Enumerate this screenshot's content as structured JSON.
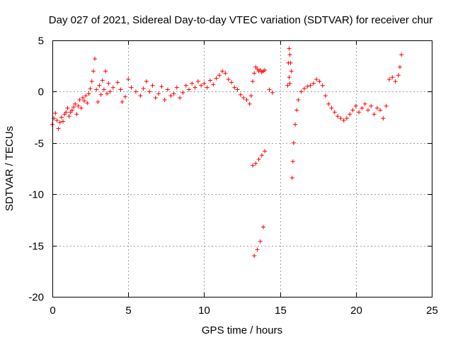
{
  "chart_data": {
    "type": "scatter",
    "title": "Day 027 of 2021, Sidereal Day-to-day VTEC variation (SDTVAR) for receiver chur",
    "xlabel": "GPS time / hours",
    "ylabel": "SDTVAR / TECUs",
    "xlim": [
      0,
      25
    ],
    "ylim": [
      -20,
      5
    ],
    "xticks": [
      "0",
      "5",
      "10",
      "15",
      "20",
      "25"
    ],
    "yticks": [
      "5",
      "0",
      "-5",
      "-10",
      "-15",
      "-20"
    ],
    "grid": true,
    "marker": "plus",
    "color": "#ff0000",
    "series": [
      {
        "name": "SDTVAR",
        "x": [
          0.0,
          0.1,
          0.2,
          0.3,
          0.4,
          0.5,
          0.6,
          0.7,
          0.8,
          0.9,
          1.0,
          1.1,
          1.2,
          1.3,
          1.4,
          1.5,
          1.6,
          1.7,
          1.8,
          1.9,
          2.0,
          2.1,
          2.2,
          2.3,
          2.4,
          2.5,
          2.6,
          2.7,
          2.8,
          2.9,
          3.0,
          3.1,
          3.2,
          3.3,
          3.4,
          3.5,
          3.6,
          3.7,
          3.8,
          4.0,
          4.3,
          4.5,
          4.6,
          4.8,
          5.0,
          5.2,
          5.5,
          5.8,
          6.0,
          6.2,
          6.4,
          6.6,
          6.8,
          7.0,
          7.2,
          7.4,
          7.6,
          7.8,
          8.0,
          8.2,
          8.4,
          8.6,
          8.8,
          9.0,
          9.2,
          9.4,
          9.6,
          9.8,
          10.0,
          10.2,
          10.4,
          10.6,
          10.8,
          11.0,
          11.2,
          11.4,
          11.6,
          11.8,
          12.0,
          12.2,
          12.4,
          12.6,
          12.8,
          13.0,
          13.1,
          13.2,
          13.3,
          13.4,
          13.5,
          13.6,
          13.7,
          13.8,
          13.9,
          14.0,
          13.2,
          13.4,
          13.6,
          13.8,
          14.0,
          13.3,
          13.5,
          13.7,
          13.9,
          14.3,
          14.5,
          15.6,
          15.65,
          15.7,
          15.75,
          15.8,
          15.85,
          15.9,
          16.0,
          16.1,
          16.2,
          16.4,
          16.6,
          16.8,
          17.0,
          17.2,
          17.4,
          17.6,
          17.8,
          18.0,
          18.2,
          18.4,
          18.6,
          18.8,
          19.0,
          19.2,
          19.4,
          19.6,
          19.8,
          20.0,
          20.2,
          20.4,
          20.6,
          20.8,
          21.0,
          21.2,
          21.4,
          21.6,
          21.8,
          22.0,
          22.2,
          22.4,
          22.6,
          22.8,
          22.9,
          23.0,
          15.5,
          15.55,
          15.6,
          15.65
        ],
        "y": [
          -3.2,
          -2.6,
          -2.1,
          -2.8,
          -3.6,
          -3.0,
          -2.5,
          -2.9,
          -2.2,
          -2.0,
          -1.6,
          -2.4,
          -2.0,
          -1.8,
          -1.5,
          -1.2,
          -2.2,
          -1.4,
          -0.8,
          -1.6,
          -0.6,
          -0.9,
          -0.4,
          -1.1,
          -0.2,
          0.3,
          1.0,
          2.0,
          3.2,
          0.2,
          -1.0,
          0.6,
          -0.3,
          1.1,
          0.2,
          2.0,
          -0.2,
          0.8,
          0.0,
          0.4,
          0.9,
          0.2,
          -1.0,
          -0.5,
          1.2,
          0.4,
          0.0,
          -0.4,
          0.3,
          1.0,
          0.0,
          0.6,
          -0.6,
          -0.2,
          0.5,
          -0.8,
          0.2,
          -0.4,
          -0.2,
          0.4,
          -0.6,
          -0.1,
          0.6,
          0.2,
          0.8,
          0.4,
          1.0,
          0.6,
          0.8,
          0.4,
          1.1,
          0.7,
          1.3,
          1.6,
          2.0,
          1.8,
          1.2,
          0.9,
          0.4,
          0.2,
          -0.3,
          -0.6,
          -0.8,
          -1.2,
          -0.4,
          1.0,
          1.8,
          2.4,
          2.2,
          2.0,
          2.1,
          1.9,
          2.0,
          2.1,
          -7.2,
          -7.0,
          -6.6,
          -6.2,
          -5.8,
          -16.0,
          -15.4,
          -14.6,
          -13.2,
          0.2,
          -0.1,
          4.2,
          3.6,
          2.8,
          2.0,
          -8.4,
          -6.8,
          -5.0,
          -3.2,
          -1.8,
          -0.8,
          0.0,
          0.3,
          0.5,
          0.6,
          0.8,
          1.2,
          1.0,
          0.6,
          -0.4,
          -1.2,
          -1.6,
          -2.0,
          -2.4,
          -2.6,
          -2.8,
          -2.6,
          -2.2,
          -1.8,
          -1.4,
          -2.0,
          -1.6,
          -1.2,
          -1.8,
          -1.4,
          -2.2,
          -1.6,
          -1.8,
          -2.6,
          -1.4,
          1.2,
          1.4,
          1.0,
          1.6,
          2.4,
          3.6,
          0.6,
          2.8,
          1.4,
          0.8
        ]
      }
    ]
  }
}
